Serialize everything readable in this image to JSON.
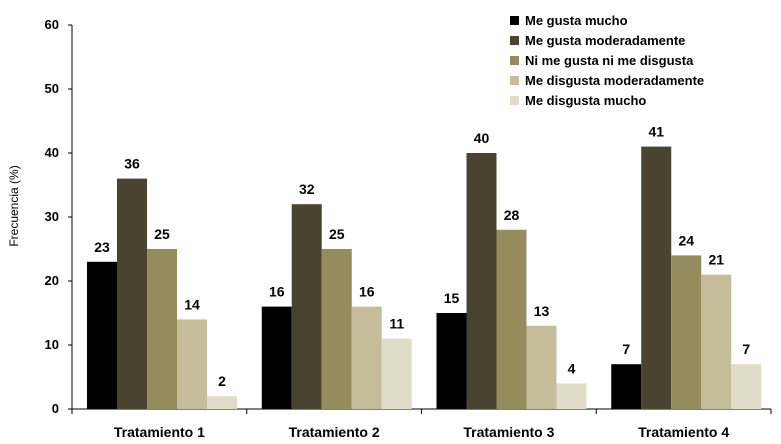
{
  "chart_data": {
    "type": "bar",
    "title": "",
    "xlabel": "",
    "ylabel": "Frecuencia (%)",
    "ylim": [
      0,
      60
    ],
    "yticks": [
      0,
      10,
      20,
      30,
      40,
      50,
      60
    ],
    "grid": false,
    "legend_position": "top-right",
    "categories": [
      "Tratamiento 1",
      "Tratamiento 2",
      "Tratamiento 3",
      "Tratamiento 4"
    ],
    "series": [
      {
        "name": "Me gusta mucho",
        "color": "#000000",
        "values": [
          23,
          16,
          15,
          7
        ]
      },
      {
        "name": "Me gusta moderadamente",
        "color": "#4a4330",
        "values": [
          36,
          32,
          40,
          41
        ]
      },
      {
        "name": "Ni me gusta ni me disgusta",
        "color": "#958c5d",
        "values": [
          25,
          25,
          28,
          24
        ]
      },
      {
        "name": "Me disgusta moderadamente",
        "color": "#c5bd99",
        "values": [
          14,
          16,
          13,
          21
        ]
      },
      {
        "name": "Me disgusta mucho",
        "color": "#e1dcc8",
        "values": [
          2,
          11,
          4,
          7
        ]
      }
    ]
  }
}
